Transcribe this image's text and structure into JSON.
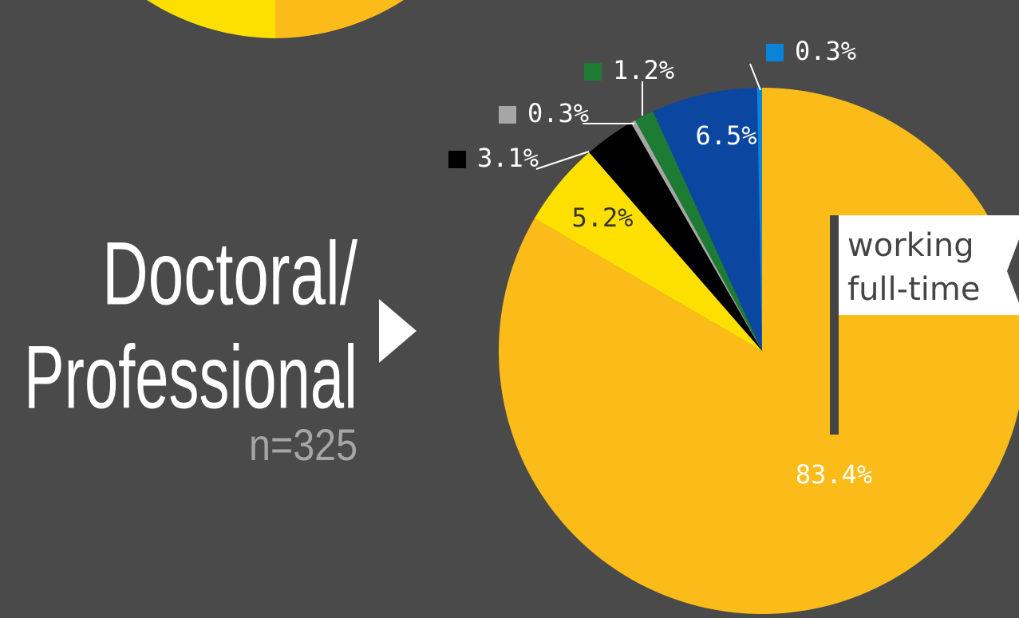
{
  "chart_data": {
    "type": "pie",
    "title_lines": [
      "Doctoral/",
      "Professional"
    ],
    "subtitle": "n=325",
    "annotation_lines": [
      "working",
      "full-time"
    ],
    "values": [
      83.4,
      5.2,
      3.1,
      0.3,
      1.2,
      6.5,
      0.3
    ],
    "value_labels": [
      "83.4%",
      "5.2%",
      "3.1%",
      "0.3%",
      "1.2%",
      "6.5%",
      "0.3%"
    ],
    "colors": [
      "#fbbc1a",
      "#fde000",
      "#000000",
      "#a6a6a6",
      "#1e7b34",
      "#0b47a1",
      "#0a84d8"
    ]
  }
}
